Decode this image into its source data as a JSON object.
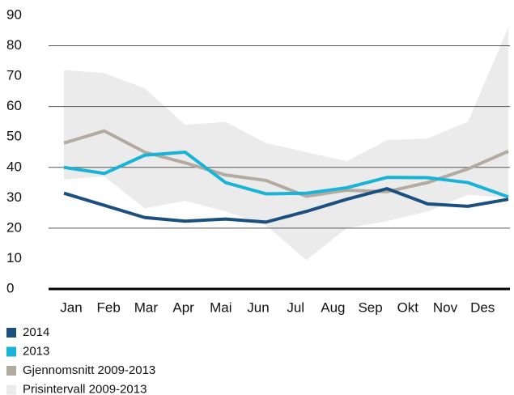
{
  "chart_data": {
    "type": "line",
    "categories": [
      "Jan",
      "Feb",
      "Mar",
      "Apr",
      "Mai",
      "Jun",
      "Jul",
      "Aug",
      "Sep",
      "Okt",
      "Nov",
      "Des"
    ],
    "band": {
      "name": "Prisintervall 2009-2013",
      "color": "#ebebeb",
      "lower": [
        36,
        37,
        26.5,
        29,
        25.5,
        21,
        9.5,
        20,
        22.3,
        25.5,
        31,
        30
      ],
      "upper": [
        72,
        71,
        66,
        54,
        55,
        48,
        45,
        42,
        49,
        49.5,
        55,
        86
      ]
    },
    "series": [
      {
        "name": "2014",
        "color": "#1b4f80",
        "values": [
          31.5,
          27.5,
          23.5,
          22.3,
          23,
          22,
          25.5,
          29.5,
          33,
          28,
          27.2,
          29.5
        ]
      },
      {
        "name": "2013",
        "color": "#1ab3d8",
        "values": [
          40,
          38,
          44,
          45,
          35,
          31.3,
          31.5,
          33.3,
          36.7,
          36.6,
          35,
          30.3
        ]
      },
      {
        "name": "Gjennomsnitt 2009-2013",
        "color": "#b3aaa2",
        "values": [
          48,
          52,
          45,
          41.5,
          37.5,
          35.7,
          30.5,
          32.5,
          32,
          35,
          39.5,
          45.3
        ]
      }
    ],
    "ylim": [
      0,
      90
    ],
    "yticks": [
      0,
      10,
      20,
      30,
      40,
      50,
      60,
      70,
      80,
      90
    ],
    "grid": true
  }
}
